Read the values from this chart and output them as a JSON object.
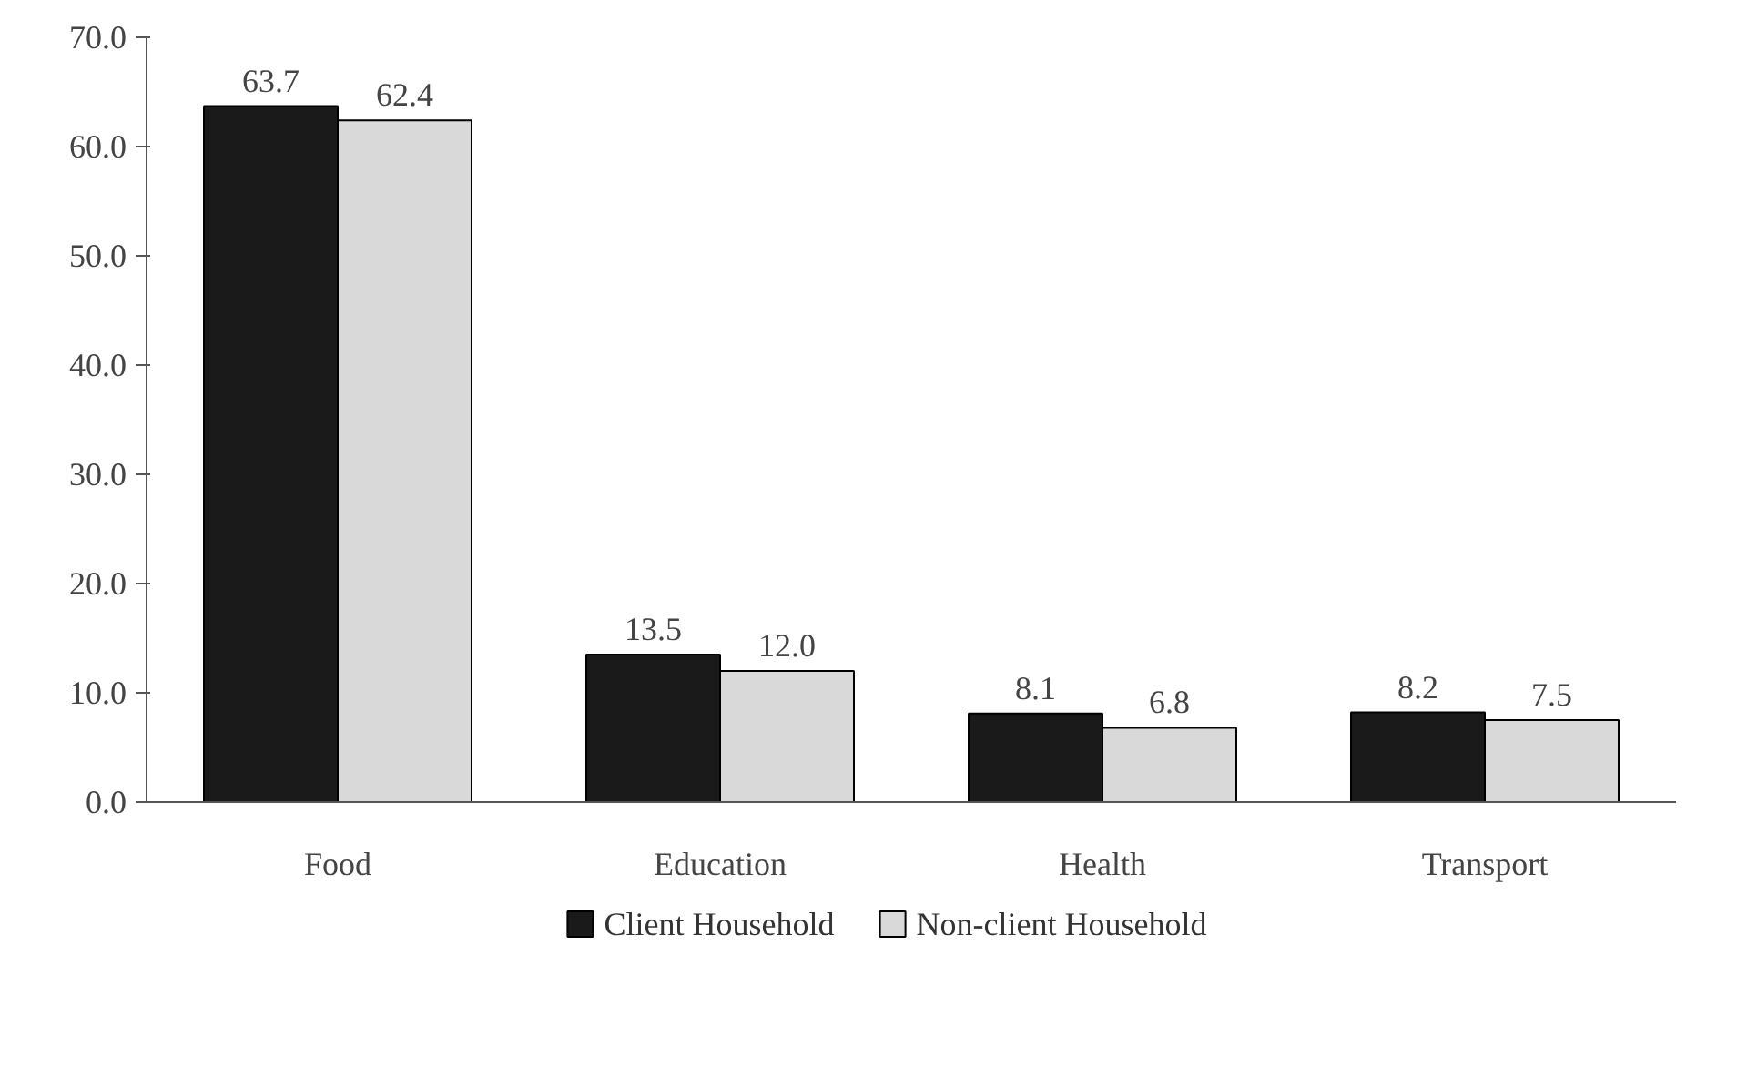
{
  "chart_data": {
    "type": "bar",
    "categories": [
      "Food",
      "Education",
      "Health",
      "Transport"
    ],
    "series": [
      {
        "name": "Client Household",
        "color": "#1a1a1a",
        "values": [
          63.7,
          13.5,
          8.1,
          8.2
        ],
        "value_labels": [
          "63.7",
          "13.5",
          "8.1",
          "8.2"
        ]
      },
      {
        "name": "Non-client Household",
        "color": "#d9d9d9",
        "values": [
          62.4,
          12.0,
          6.8,
          7.5
        ],
        "value_labels": [
          "62.4",
          "12.0",
          "6.8",
          "7.5"
        ]
      }
    ],
    "ylim": [
      0,
      70
    ],
    "yticks": [
      {
        "value": 0,
        "label": "0.0"
      },
      {
        "value": 10,
        "label": "10.0"
      },
      {
        "value": 20,
        "label": "20.0"
      },
      {
        "value": 30,
        "label": "30.0"
      },
      {
        "value": 40,
        "label": "40.0"
      },
      {
        "value": 50,
        "label": "50.0"
      },
      {
        "value": 60,
        "label": "60.0"
      },
      {
        "value": 70,
        "label": "70.0"
      }
    ],
    "grid": false,
    "legend": "bottom"
  }
}
